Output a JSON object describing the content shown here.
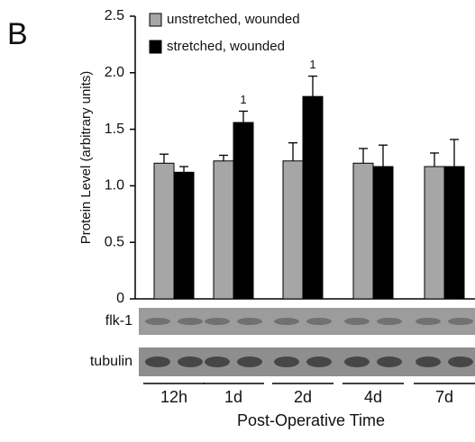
{
  "chart_data": {
    "type": "bar",
    "panel_label": "B",
    "y_label": "Protein Level (arbitrary units)",
    "x_label": "Post-Operative Time",
    "categories": [
      "12h",
      "1d",
      "2d",
      "4d",
      "7d"
    ],
    "series": [
      {
        "name": "unstretched, wounded",
        "color": "#a6a6a6",
        "values": [
          1.2,
          1.22,
          1.22,
          1.2,
          1.17
        ],
        "errors": [
          0.08,
          0.05,
          0.16,
          0.13,
          0.12
        ]
      },
      {
        "name": "stretched, wounded",
        "color": "#000000",
        "values": [
          1.12,
          1.56,
          1.79,
          1.17,
          1.17
        ],
        "errors": [
          0.05,
          0.1,
          0.18,
          0.19,
          0.24
        ]
      }
    ],
    "annotations": [
      {
        "text": "1",
        "series": 1,
        "category": "1d"
      },
      {
        "text": "1",
        "series": 1,
        "category": "2d"
      }
    ],
    "ylim": [
      0,
      2.5
    ],
    "yticks": [
      0,
      0.5,
      {
        "value": 1,
        "label": "1.0"
      },
      1.5,
      {
        "value": 2,
        "label": "2.0"
      },
      2.5
    ],
    "blot_labels": [
      "flk-1",
      "tubulin"
    ],
    "legend": "upper left"
  }
}
